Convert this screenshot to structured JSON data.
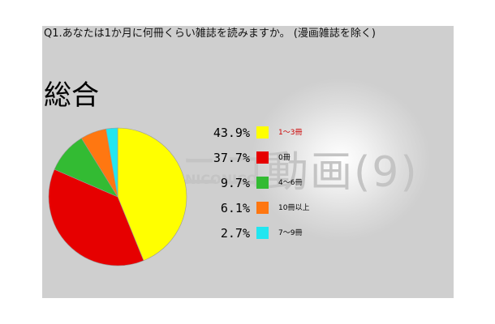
{
  "question": "Q1.あなたは1か月に何冊くらい雑誌を読みますか。 (漫画雑誌を除く)",
  "heading": "総合",
  "watermark": "ニコ動画(9)",
  "watermark_en": "NICONICO",
  "chart_data": {
    "type": "pie",
    "title": "総合",
    "slices": [
      {
        "label": "1～3冊",
        "value": 43.9,
        "value_text": "43.9%",
        "color": "#ffff00",
        "label_color": "#cc0000"
      },
      {
        "label": "0冊",
        "value": 37.7,
        "value_text": "37.7%",
        "color": "#e60000",
        "label_color": "#000000"
      },
      {
        "label": "4～6冊",
        "value": 9.7,
        "value_text": "9.7%",
        "color": "#33bb33",
        "label_color": "#000000"
      },
      {
        "label": "10冊以上",
        "value": 6.1,
        "value_text": "6.1%",
        "color": "#ff7711",
        "label_color": "#000000"
      },
      {
        "label": "7～9冊",
        "value": 2.7,
        "value_text": "2.7%",
        "color": "#22e6f0",
        "label_color": "#000000"
      }
    ],
    "start_angle_deg": 0,
    "direction": "clockwise",
    "legend_position": "right"
  }
}
